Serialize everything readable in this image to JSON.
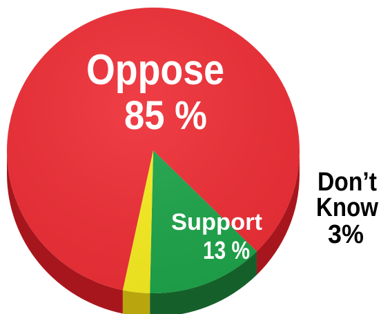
{
  "chart_data": {
    "type": "pie",
    "title": "",
    "slices": [
      {
        "label": "Oppose",
        "value": 85,
        "display": "85 %",
        "color": "#ee2e36",
        "side_color": "#a8161d"
      },
      {
        "label": "Support",
        "value": 13,
        "display": "13 %",
        "color": "#1ea44a",
        "side_color": "#15602a"
      },
      {
        "label": "Don’t Know",
        "value": 3,
        "display": "3%",
        "color": "#f6ec20",
        "side_color": "#b9a60f"
      }
    ],
    "legend": "none",
    "style": "3d-tilted"
  }
}
